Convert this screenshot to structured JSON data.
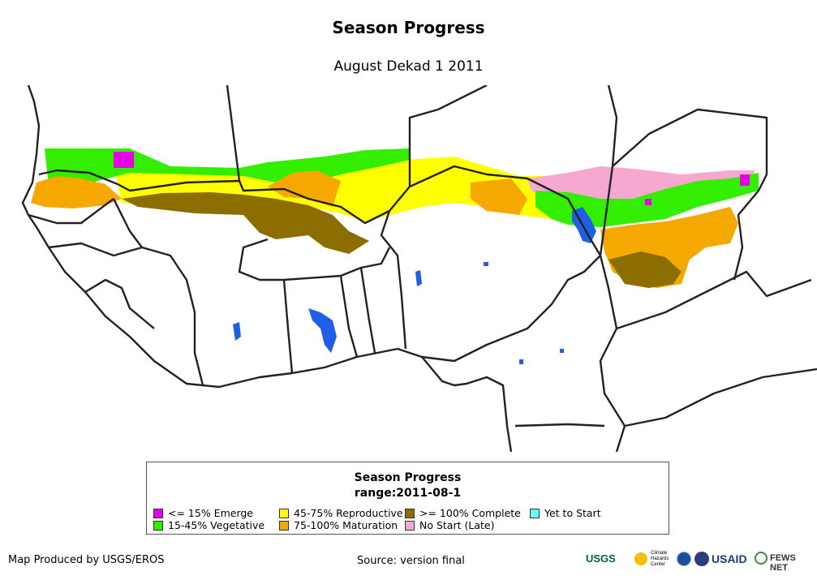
{
  "map": {
    "title": "Season Progress",
    "subtitle": "August Dekad 1 2011"
  },
  "legend": {
    "title": "Season Progress",
    "range": "range:2011-08-1",
    "items": [
      {
        "label": "<= 15% Emerge",
        "color": "#e600e6"
      },
      {
        "label": "15-45% Vegetative",
        "color": "#33ee00"
      },
      {
        "label": "45-75% Reproductive",
        "color": "#ffff00"
      },
      {
        "label": "75-100% Maturation",
        "color": "#f5a800"
      },
      {
        "label": ">= 100% Complete",
        "color": "#8c6e00"
      },
      {
        "label": "No Start (Late)",
        "color": "#f7a8d0"
      },
      {
        "label": "Yet to Start",
        "color": "#66ffee"
      }
    ]
  },
  "colors": {
    "water": "#1f5fe6",
    "border": "#222222"
  },
  "footer": {
    "producer": "Map Produced by USGS/EROS",
    "source": "Source: version final"
  },
  "logos": {
    "usgs": "USGS",
    "chc": "Climate Hazards Center",
    "noaa": "NOAA",
    "usaid": "USAID",
    "fews": "FEWS NET"
  }
}
